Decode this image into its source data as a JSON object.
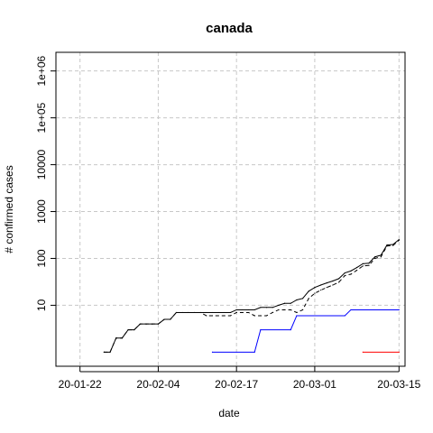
{
  "chart_data": {
    "type": "line",
    "title": "canada",
    "xlabel": "date",
    "ylabel": "# confirmed cases",
    "x_axis": {
      "type": "date",
      "range": [
        "2020-01-18",
        "2020-03-16"
      ],
      "ticks": [
        "2020-01-22",
        "2020-02-04",
        "2020-02-17",
        "2020-03-01",
        "2020-03-15"
      ],
      "tick_labels": [
        "20-01-22",
        "20-02-04",
        "20-02-17",
        "20-03-01",
        "20-03-15"
      ]
    },
    "y_axis": {
      "scale": "log",
      "range": [
        0.5,
        2500000
      ],
      "ticks": [
        10,
        100,
        1000,
        10000,
        100000,
        1000000
      ],
      "tick_labels": [
        "10",
        "100",
        "1000",
        "10000",
        "1e+05",
        "1e+06"
      ]
    },
    "grid": true,
    "series": [
      {
        "color": "#000000",
        "style": "solid",
        "points": [
          [
            "2020-01-26",
            1
          ],
          [
            "2020-01-27",
            1
          ],
          [
            "2020-01-28",
            2
          ],
          [
            "2020-01-29",
            2
          ],
          [
            "2020-01-30",
            3
          ],
          [
            "2020-01-31",
            3
          ],
          [
            "2020-02-01",
            4
          ],
          [
            "2020-02-02",
            4
          ],
          [
            "2020-02-03",
            4
          ],
          [
            "2020-02-04",
            4
          ],
          [
            "2020-02-05",
            5
          ],
          [
            "2020-02-06",
            5
          ],
          [
            "2020-02-07",
            7
          ],
          [
            "2020-02-08",
            7
          ],
          [
            "2020-02-09",
            7
          ],
          [
            "2020-02-10",
            7
          ],
          [
            "2020-02-11",
            7
          ],
          [
            "2020-02-12",
            7
          ],
          [
            "2020-02-13",
            7
          ],
          [
            "2020-02-14",
            7
          ],
          [
            "2020-02-15",
            7
          ],
          [
            "2020-02-16",
            7
          ],
          [
            "2020-02-17",
            8
          ],
          [
            "2020-02-18",
            8
          ],
          [
            "2020-02-19",
            8
          ],
          [
            "2020-02-20",
            8
          ],
          [
            "2020-02-21",
            9
          ],
          [
            "2020-02-22",
            9
          ],
          [
            "2020-02-23",
            9
          ],
          [
            "2020-02-24",
            10
          ],
          [
            "2020-02-25",
            11
          ],
          [
            "2020-02-26",
            11
          ],
          [
            "2020-02-27",
            13
          ],
          [
            "2020-02-28",
            14
          ],
          [
            "2020-02-29",
            20
          ],
          [
            "2020-03-01",
            24
          ],
          [
            "2020-03-02",
            27
          ],
          [
            "2020-03-03",
            30
          ],
          [
            "2020-03-04",
            33
          ],
          [
            "2020-03-05",
            37
          ],
          [
            "2020-03-06",
            49
          ],
          [
            "2020-03-07",
            54
          ],
          [
            "2020-03-08",
            64
          ],
          [
            "2020-03-09",
            77
          ],
          [
            "2020-03-10",
            79
          ],
          [
            "2020-03-11",
            108
          ],
          [
            "2020-03-12",
            117
          ],
          [
            "2020-03-13",
            193
          ],
          [
            "2020-03-14",
            198
          ],
          [
            "2020-03-15",
            252
          ]
        ]
      },
      {
        "color": "#000000",
        "style": "dashed",
        "points": [
          [
            "2020-01-26",
            1
          ],
          [
            "2020-01-27",
            1
          ],
          [
            "2020-01-28",
            2
          ],
          [
            "2020-01-29",
            2
          ],
          [
            "2020-01-30",
            3
          ],
          [
            "2020-01-31",
            3
          ],
          [
            "2020-02-01",
            4
          ],
          [
            "2020-02-02",
            4
          ],
          [
            "2020-02-03",
            4
          ],
          [
            "2020-02-04",
            4
          ],
          [
            "2020-02-05",
            5
          ],
          [
            "2020-02-06",
            5
          ],
          [
            "2020-02-07",
            7
          ],
          [
            "2020-02-08",
            7
          ],
          [
            "2020-02-09",
            7
          ],
          [
            "2020-02-10",
            7
          ],
          [
            "2020-02-11",
            7
          ],
          [
            "2020-02-12",
            6
          ],
          [
            "2020-02-13",
            6
          ],
          [
            "2020-02-14",
            6
          ],
          [
            "2020-02-15",
            6
          ],
          [
            "2020-02-16",
            6
          ],
          [
            "2020-02-17",
            7
          ],
          [
            "2020-02-18",
            7
          ],
          [
            "2020-02-19",
            7
          ],
          [
            "2020-02-20",
            6
          ],
          [
            "2020-02-21",
            6
          ],
          [
            "2020-02-22",
            6
          ],
          [
            "2020-02-23",
            7
          ],
          [
            "2020-02-24",
            8
          ],
          [
            "2020-02-25",
            8
          ],
          [
            "2020-02-26",
            8
          ],
          [
            "2020-02-27",
            7
          ],
          [
            "2020-02-28",
            8
          ],
          [
            "2020-02-29",
            14
          ],
          [
            "2020-03-01",
            18
          ],
          [
            "2020-03-02",
            21
          ],
          [
            "2020-03-03",
            24
          ],
          [
            "2020-03-04",
            27
          ],
          [
            "2020-03-05",
            31
          ],
          [
            "2020-03-06",
            43
          ],
          [
            "2020-03-07",
            46
          ],
          [
            "2020-03-08",
            56
          ],
          [
            "2020-03-09",
            69
          ],
          [
            "2020-03-10",
            71
          ],
          [
            "2020-03-11",
            100
          ],
          [
            "2020-03-12",
            108
          ],
          [
            "2020-03-13",
            184
          ],
          [
            "2020-03-14",
            189
          ],
          [
            "2020-03-15",
            243
          ]
        ]
      },
      {
        "color": "#0000ff",
        "style": "solid",
        "points": [
          [
            "2020-02-13",
            1
          ],
          [
            "2020-02-20",
            1
          ],
          [
            "2020-02-21",
            3
          ],
          [
            "2020-02-26",
            3
          ],
          [
            "2020-02-27",
            6
          ],
          [
            "2020-03-06",
            6
          ],
          [
            "2020-03-07",
            8
          ],
          [
            "2020-03-15",
            8
          ]
        ]
      },
      {
        "color": "#ff0000",
        "style": "solid",
        "points": [
          [
            "2020-03-09",
            1
          ],
          [
            "2020-03-15",
            1
          ]
        ]
      }
    ]
  }
}
